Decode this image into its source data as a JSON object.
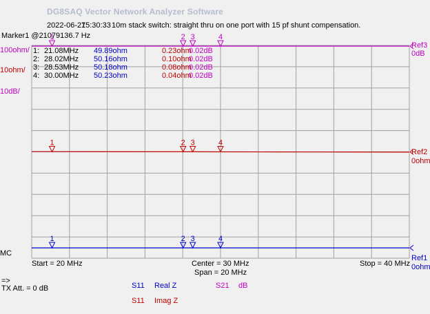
{
  "app": {
    "title": "DG8SAQ Vector Network Analyzer Software"
  },
  "header": {
    "date": "2022-06-27",
    "time": "15:30:33",
    "description": "10m stack switch: straight thru on one port with 15 pf shunt compensation."
  },
  "marker_readout": "Marker1 @21079136.7 Hz",
  "scales": {
    "s21_scale": "100ohm/",
    "s11_imag_scale": "10ohm/",
    "s21_db_scale": "10dB/",
    "mode": "MC"
  },
  "refs": {
    "ref3_name": "Ref3",
    "ref3_value": "0dB",
    "ref2_name": "Ref2",
    "ref2_value": "0ohm",
    "ref1_name": "Ref1",
    "ref1_value": "0ohm"
  },
  "markers": [
    {
      "label": "1:",
      "freq": "21.08MHz",
      "s11_real": "49.89ohm",
      "s11_imag": "0.23ohm",
      "s21": "0.02dB"
    },
    {
      "label": "2:",
      "freq": "28.02MHz",
      "s11_real": "50.16ohm",
      "s11_imag": "0.10ohm",
      "s21": "0.02dB"
    },
    {
      "label": "3:",
      "freq": "28.53MHz",
      "s11_real": "50.18ohm",
      "s11_imag": "0.08ohm",
      "s21": "0.02dB"
    },
    {
      "label": "4:",
      "freq": "30.00MHz",
      "s11_real": "50.23ohm",
      "s11_imag": "0.04ohm",
      "s21": "0.02dB"
    }
  ],
  "marker_numbers": [
    "1",
    "2",
    "3",
    "4"
  ],
  "footer": {
    "start": "Start = 20 MHz",
    "center": "Center = 30 MHz",
    "span": "Span = 20 MHz",
    "stop": "Stop = 40 MHz",
    "arrow": "=>",
    "tx_att": "TX Att.  = 0 dB"
  },
  "legend": {
    "s11_real_param": "S11",
    "s11_real_fmt": "Real Z",
    "s21_param": "S21",
    "s21_fmt": "dB",
    "s11_imag_param": "S11",
    "s11_imag_fmt": "Imag Z"
  },
  "colors": {
    "magenta": "#c000c0",
    "red": "#c00000",
    "blue": "#0000c8",
    "grid": "#a0a0a0",
    "plot_bg": "#f0f0f0"
  },
  "chart_data": {
    "type": "line",
    "x_unit": "MHz",
    "xlim": [
      20,
      40
    ],
    "grid": true,
    "marker_freqs_mhz": [
      21.08,
      28.02,
      28.53,
      30.0
    ],
    "series": [
      {
        "name": "S21 dB",
        "color": "#c000c0",
        "ref": "Ref3",
        "scale_per_div": 10,
        "x": [
          20,
          40
        ],
        "y": [
          0.02,
          0.02
        ]
      },
      {
        "name": "S11 Imag Z",
        "color": "#c00000",
        "ref": "Ref2",
        "scale_per_div": 10,
        "x": [
          20,
          21.08,
          28.02,
          28.53,
          30.0,
          33.0,
          35.0,
          40
        ],
        "y": [
          0.25,
          0.23,
          0.1,
          0.08,
          0.04,
          -0.1,
          -0.15,
          -0.3
        ]
      },
      {
        "name": "S11 Real Z",
        "color": "#0000c8",
        "ref": "Ref1",
        "scale_per_div": 100,
        "x": [
          20,
          21.08,
          28.02,
          28.53,
          30.0,
          40
        ],
        "y": [
          49.85,
          49.89,
          50.16,
          50.18,
          50.23,
          50.4
        ]
      }
    ]
  }
}
